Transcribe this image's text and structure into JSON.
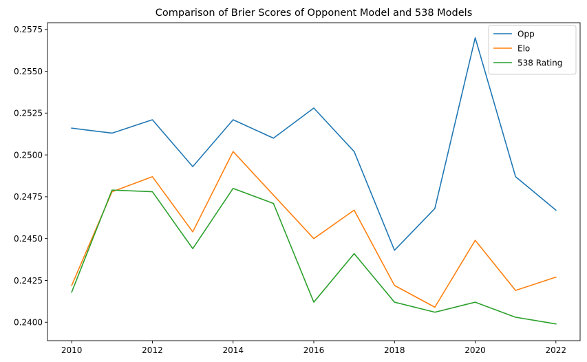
{
  "chart_data": {
    "type": "line",
    "title": "Comparison of Brier Scores of Opponent Model and 538 Models",
    "xlabel": "",
    "ylabel": "",
    "x": [
      2010,
      2011,
      2012,
      2013,
      2014,
      2015,
      2016,
      2017,
      2018,
      2019,
      2020,
      2021,
      2022
    ],
    "xlim": [
      2009.4,
      2022.6
    ],
    "ylim": [
      0.2389,
      0.2579
    ],
    "x_ticks": [
      2010,
      2012,
      2014,
      2016,
      2018,
      2020,
      2022
    ],
    "x_tick_labels": [
      "2010",
      "2012",
      "2014",
      "2016",
      "2018",
      "2020",
      "2022"
    ],
    "y_ticks": [
      0.24,
      0.2425,
      0.245,
      0.2475,
      0.25,
      0.2525,
      0.255,
      0.2575
    ],
    "y_tick_labels": [
      "0.2400",
      "0.2425",
      "0.2450",
      "0.2475",
      "0.2500",
      "0.2525",
      "0.2550",
      "0.2575"
    ],
    "grid": false,
    "legend_position": "top-right",
    "series": [
      {
        "name": "Opp",
        "color": "#1f77b4",
        "values": [
          0.2516,
          0.2513,
          0.2521,
          0.2493,
          0.2521,
          0.251,
          0.2528,
          0.2502,
          0.2443,
          0.2468,
          0.257,
          0.2487,
          0.2467
        ]
      },
      {
        "name": "Elo",
        "color": "#ff7f0e",
        "values": [
          0.2422,
          0.2478,
          0.2487,
          0.2454,
          0.2502,
          0.2476,
          0.245,
          0.2467,
          0.2422,
          0.2409,
          0.2449,
          0.2419,
          0.2427
        ]
      },
      {
        "name": "538 Rating",
        "color": "#2ca02c",
        "values": [
          0.2418,
          0.2479,
          0.2478,
          0.2444,
          0.248,
          0.2471,
          0.2412,
          0.2441,
          0.2412,
          0.2406,
          0.2412,
          0.2403,
          0.2399
        ]
      }
    ]
  }
}
